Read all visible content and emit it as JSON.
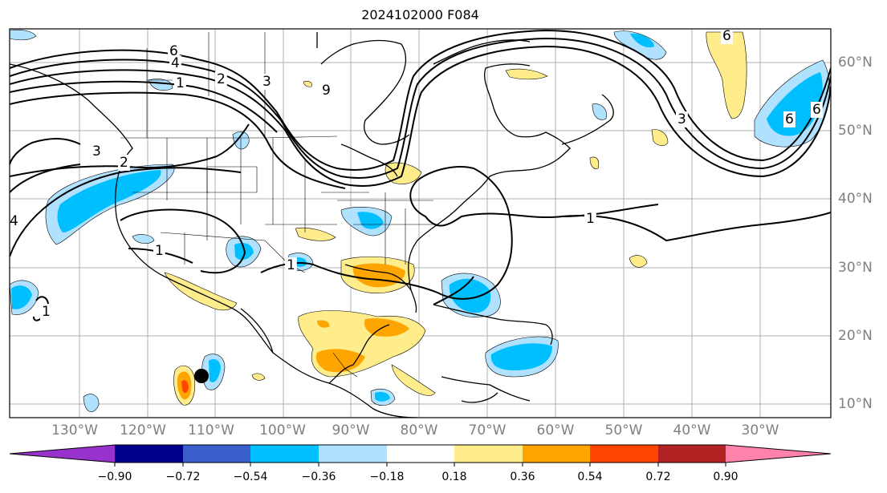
{
  "title": "2024102000 F084",
  "map": {
    "lon_labels": [
      "130°W",
      "120°W",
      "110°W",
      "100°W",
      "90°W",
      "80°W",
      "70°W",
      "60°W",
      "50°W",
      "40°W",
      "30°W"
    ],
    "lat_labels": [
      "60°N",
      "50°N",
      "40°N",
      "30°N",
      "20°N",
      "10°N"
    ],
    "contour_labels": [
      "6",
      "4",
      "2",
      "1",
      "3",
      "2",
      "3",
      "4",
      "1",
      "1",
      "1",
      "9",
      "1",
      "6",
      "3",
      "6",
      "6"
    ],
    "storm_marker": "black-dot"
  },
  "colorbar": {
    "tick_labels": [
      "−0.90",
      "−0.72",
      "−0.54",
      "−0.36",
      "−0.18",
      "0.18",
      "0.36",
      "0.54",
      "0.72",
      "0.90"
    ],
    "colors": [
      "#9932cc",
      "#00008b",
      "#3a5fcd",
      "#00bfff",
      "#b0e2ff",
      "#ffffff",
      "#ffec8b",
      "#ffa500",
      "#ff4500",
      "#b22222",
      "#ff82ab"
    ],
    "extend": "both"
  },
  "legend_colors": {
    "pos_light": "#ffec8b",
    "pos_mid": "#ffa500",
    "pos_strong": "#ff4500",
    "pos_max": "#b22222",
    "neg_light": "#b0e2ff",
    "neg_mid": "#00bfff",
    "neg_strong": "#3a5fcd",
    "neg_max": "#9932cc"
  }
}
